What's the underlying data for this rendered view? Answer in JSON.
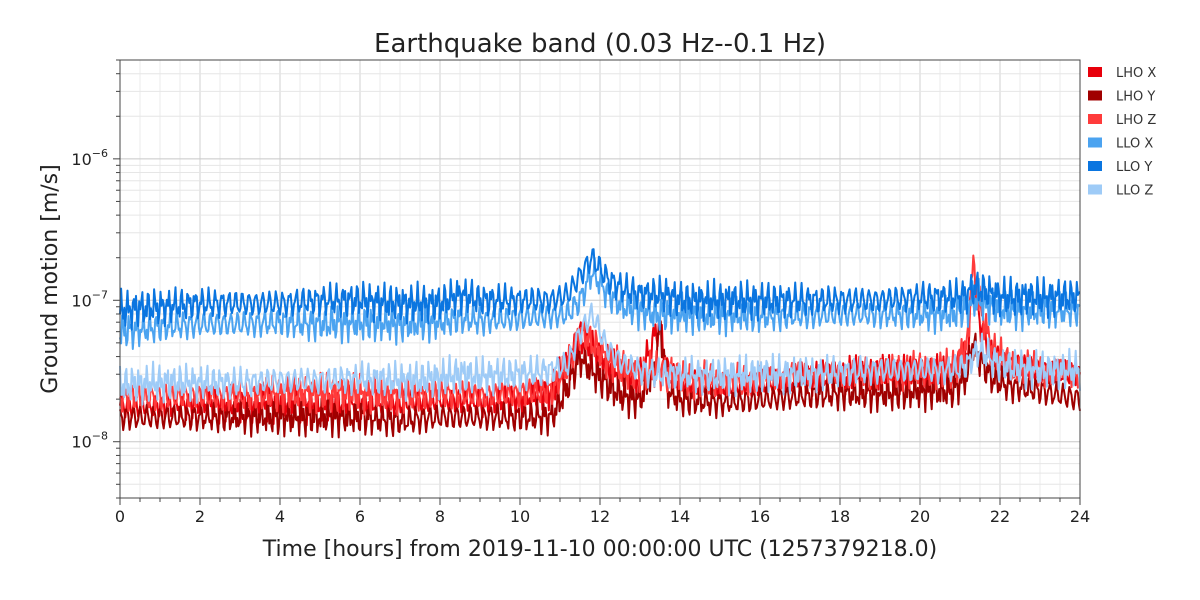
{
  "chart_data": {
    "type": "line",
    "title": "Earthquake band (0.03 Hz--0.1 Hz)",
    "xlabel": "Time [hours] from 2019-11-10 00:00:00 UTC (1257379218.0)",
    "ylabel": "Ground motion [m/s]",
    "xlim": [
      0,
      24
    ],
    "ylim": [
      4e-09,
      5e-06
    ],
    "yscale": "log",
    "grid": true,
    "legend_position": "outside-top-right",
    "x_ticks": [
      "0",
      "2",
      "4",
      "6",
      "8",
      "10",
      "12",
      "14",
      "16",
      "18",
      "20",
      "22",
      "24"
    ],
    "y_ticks": [
      {
        "value": 1e-08,
        "mantissa": "10",
        "exp": "−8"
      },
      {
        "value": 1e-07,
        "mantissa": "10",
        "exp": "−7"
      },
      {
        "value": 1e-06,
        "mantissa": "10",
        "exp": "−6"
      }
    ],
    "x": [
      0,
      1,
      2,
      3,
      4,
      5,
      6,
      7,
      8,
      8.5,
      9,
      10,
      10.8,
      11.2,
      11.5,
      11.8,
      12.2,
      12.6,
      13,
      13.4,
      13.5,
      13.7,
      14,
      15,
      16,
      17,
      18,
      19,
      20,
      20.8,
      21.2,
      21.3,
      21.5,
      21.8,
      22.2,
      23,
      24
    ],
    "series": [
      {
        "name": "LHO X",
        "color": "#e8000b",
        "values": [
          1.8e-08,
          1.8e-08,
          1.9e-08,
          1.8e-08,
          1.9e-08,
          1.8e-08,
          1.9e-08,
          1.9e-08,
          2e-08,
          2e-08,
          1.9e-08,
          2e-08,
          2.3e-08,
          3.5e-08,
          5.5e-08,
          4.5e-08,
          3.5e-08,
          3e-08,
          2.8e-08,
          6e-08,
          6.5e-08,
          3e-08,
          2.6e-08,
          2.5e-08,
          2.6e-08,
          2.8e-08,
          2.9e-08,
          3e-08,
          3e-08,
          3e-08,
          4.5e-08,
          1.3e-07,
          7e-08,
          4e-08,
          3.5e-08,
          3.2e-08,
          3e-08
        ]
      },
      {
        "name": "LHO Y",
        "color": "#a00000",
        "values": [
          1.5e-08,
          1.5e-08,
          1.5e-08,
          1.5e-08,
          1.5e-08,
          1.5e-08,
          1.5e-08,
          1.4e-08,
          1.5e-08,
          1.5e-08,
          1.5e-08,
          1.5e-08,
          1.5e-08,
          2.5e-08,
          4e-08,
          3.2e-08,
          2.5e-08,
          2.1e-08,
          2e-08,
          3.5e-08,
          7e-08,
          2.3e-08,
          2e-08,
          1.9e-08,
          2e-08,
          2.1e-08,
          2.2e-08,
          2.2e-08,
          2.3e-08,
          2.3e-08,
          3e-08,
          5e-08,
          3.8e-08,
          2.8e-08,
          2.5e-08,
          2.3e-08,
          2e-08
        ]
      },
      {
        "name": "LHO Z",
        "color": "#ff3b3b",
        "values": [
          2.1e-08,
          2.1e-08,
          2.1e-08,
          2.1e-08,
          2.2e-08,
          2.2e-08,
          2.2e-08,
          2.1e-08,
          2.2e-08,
          2.2e-08,
          2.1e-08,
          2.2e-08,
          2.3e-08,
          3.5e-08,
          6e-08,
          5e-08,
          3.8e-08,
          3.2e-08,
          3e-08,
          3.2e-08,
          3.3e-08,
          3e-08,
          2.8e-08,
          2.7e-08,
          2.8e-08,
          3e-08,
          3e-08,
          3.1e-08,
          3.2e-08,
          3.2e-08,
          5e-08,
          1.8e-07,
          9e-08,
          4.5e-08,
          3.6e-08,
          3.2e-08,
          3e-08
        ]
      },
      {
        "name": "LLO X",
        "color": "#4ba3f0",
        "values": [
          6e-08,
          6.5e-08,
          6.8e-08,
          6.8e-08,
          7e-08,
          6.8e-08,
          7e-08,
          6.8e-08,
          7e-08,
          7.5e-08,
          7.2e-08,
          7.5e-08,
          7.8e-08,
          8e-08,
          1e-07,
          1.6e-07,
          1.1e-07,
          9e-08,
          8.5e-08,
          8e-08,
          8e-08,
          8e-08,
          8e-08,
          7.8e-08,
          7.8e-08,
          7.8e-08,
          8e-08,
          8e-08,
          8e-08,
          8e-08,
          9e-08,
          1e-07,
          1e-07,
          9e-08,
          8.5e-08,
          8.5e-08,
          8.5e-08
        ]
      },
      {
        "name": "LLO Y",
        "color": "#0a75e0",
        "values": [
          8.5e-08,
          9e-08,
          9.5e-08,
          9.5e-08,
          9.5e-08,
          1e-07,
          1e-07,
          9.5e-08,
          9.5e-08,
          1.1e-07,
          1e-07,
          1e-07,
          1e-07,
          1.1e-07,
          1.5e-07,
          2e-07,
          1.4e-07,
          1.2e-07,
          1.1e-07,
          1.1e-07,
          1.1e-07,
          1.1e-07,
          1e-07,
          1e-07,
          1e-07,
          1e-07,
          1e-07,
          1e-07,
          1.05e-07,
          1.05e-07,
          1.1e-07,
          1.2e-07,
          1.2e-07,
          1.1e-07,
          1.05e-07,
          1.05e-07,
          1.05e-07
        ]
      },
      {
        "name": "LLO Z",
        "color": "#9ecbf7",
        "values": [
          2.5e-08,
          2.6e-08,
          2.6e-08,
          2.6e-08,
          2.7e-08,
          2.7e-08,
          2.8e-08,
          2.7e-08,
          2.8e-08,
          3e-08,
          2.9e-08,
          3e-08,
          3.2e-08,
          3.5e-08,
          6e-08,
          8e-08,
          4.5e-08,
          3.5e-08,
          3.2e-08,
          3e-08,
          3e-08,
          3e-08,
          3e-08,
          2.9e-08,
          3e-08,
          3e-08,
          3.1e-08,
          3.2e-08,
          3.2e-08,
          3.2e-08,
          3.5e-08,
          4e-08,
          4.5e-08,
          3.8e-08,
          3.4e-08,
          3.2e-08,
          3.2e-08
        ]
      }
    ]
  }
}
